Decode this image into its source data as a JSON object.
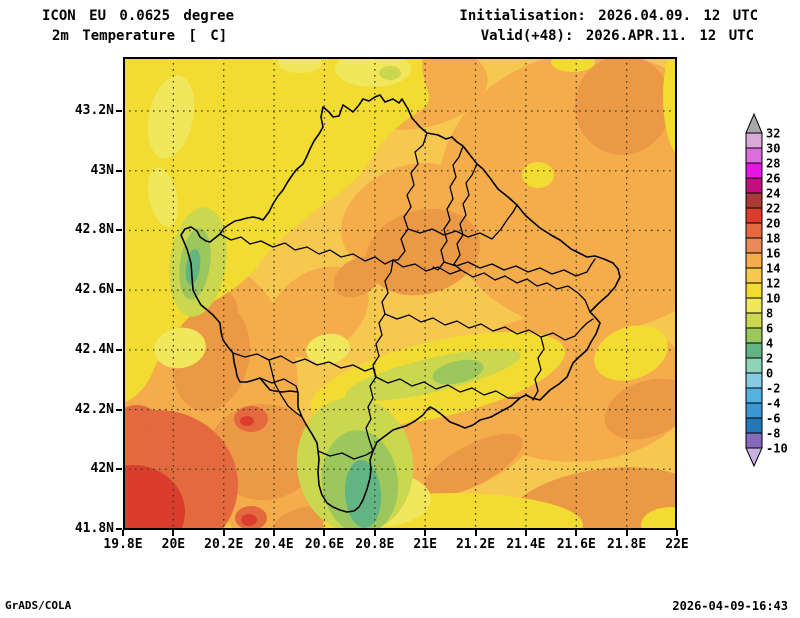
{
  "header": {
    "model_line": "ICON EU 0.0625 degree",
    "variable_line": "2m Temperature [ C]",
    "init_line": "Initialisation: 2026.04.09. 12 UTC",
    "valid_line": "Valid(+48): 2026.APR.11. 12 UTC"
  },
  "footer": {
    "credit": "GrADS/COLA",
    "timestamp": "2026-04-09-16:43"
  },
  "chart_data": {
    "type": "heatmap",
    "title": "2m Temperature [ C]",
    "model": "ICON EU 0.0625 degree",
    "initialisation": "2026.04.09. 12 UTC",
    "valid": "2026.APR.11. 12 UTC",
    "lead_hours": 48,
    "region": "Kosovo and surrounding area with municipality boundaries",
    "grid": "dotted lat/lon graticule every 0.2 degrees",
    "lon_range": [
      19.8,
      22.0
    ],
    "lat_range": [
      41.8,
      43.38
    ],
    "x_axis": {
      "label": "longitude",
      "ticks": [
        {
          "value": 19.8,
          "label": "19.8E"
        },
        {
          "value": 20.0,
          "label": "20E"
        },
        {
          "value": 20.2,
          "label": "20.2E"
        },
        {
          "value": 20.4,
          "label": "20.4E"
        },
        {
          "value": 20.6,
          "label": "20.6E"
        },
        {
          "value": 20.8,
          "label": "20.8E"
        },
        {
          "value": 21.0,
          "label": "21E"
        },
        {
          "value": 21.2,
          "label": "21.2E"
        },
        {
          "value": 21.4,
          "label": "21.4E"
        },
        {
          "value": 21.6,
          "label": "21.6E"
        },
        {
          "value": 21.8,
          "label": "21.8E"
        },
        {
          "value": 22.0,
          "label": "22E"
        }
      ]
    },
    "y_axis": {
      "label": "latitude",
      "ticks": [
        {
          "value": 43.2,
          "label": "43.2N"
        },
        {
          "value": 43.0,
          "label": "43N"
        },
        {
          "value": 42.8,
          "label": "42.8N"
        },
        {
          "value": 42.6,
          "label": "42.6N"
        },
        {
          "value": 42.4,
          "label": "42.4N"
        },
        {
          "value": 42.2,
          "label": "42.2N"
        },
        {
          "value": 42.0,
          "label": "42N"
        },
        {
          "value": 41.8,
          "label": "41.8N"
        }
      ]
    },
    "colorbar": {
      "unit": "C",
      "over_color": "#a8a8a8",
      "under_color": "#c9b2e2",
      "segments": [
        {
          "from": 30,
          "to": 32,
          "color": "#d9a9da"
        },
        {
          "from": 28,
          "to": 30,
          "color": "#dc6edc"
        },
        {
          "from": 26,
          "to": 28,
          "color": "#e316e3"
        },
        {
          "from": 24,
          "to": 26,
          "color": "#c20f80"
        },
        {
          "from": 22,
          "to": 24,
          "color": "#a93a34"
        },
        {
          "from": 20,
          "to": 22,
          "color": "#da3d2c"
        },
        {
          "from": 18,
          "to": 20,
          "color": "#e4693f"
        },
        {
          "from": 16,
          "to": 18,
          "color": "#ea8a58"
        },
        {
          "from": 14,
          "to": 16,
          "color": "#f5ad4b"
        },
        {
          "from": 12,
          "to": 14,
          "color": "#f6c84f"
        },
        {
          "from": 10,
          "to": 12,
          "color": "#f2dc31"
        },
        {
          "from": 8,
          "to": 10,
          "color": "#f1e75c"
        },
        {
          "from": 6,
          "to": 8,
          "color": "#cbd74e"
        },
        {
          "from": 4,
          "to": 6,
          "color": "#9cc75d"
        },
        {
          "from": 2,
          "to": 4,
          "color": "#62b583"
        },
        {
          "from": 0,
          "to": 2,
          "color": "#8ed4b9"
        },
        {
          "from": -2,
          "to": 0,
          "color": "#85cbe4"
        },
        {
          "from": -4,
          "to": -2,
          "color": "#55b1e0"
        },
        {
          "from": -6,
          "to": -4,
          "color": "#3b96d2"
        },
        {
          "from": -8,
          "to": -6,
          "color": "#2478b6"
        },
        {
          "from": -10,
          "to": -8,
          "color": "#8569bb"
        }
      ]
    },
    "temperature_features": [
      {
        "area": "northwest quadrant (outside Kosovo, high plateau)",
        "temp_c": "10-12"
      },
      {
        "area": "pale patches far NW and along top edge",
        "temp_c": "8-10"
      },
      {
        "area": "western border mountains (~20.15E, 42.5-42.7N)",
        "temp_c": "2-8 (green patch)"
      },
      {
        "area": "Sharr mountains south-center (~20.7E, 41.9-42.2N)",
        "temp_c": "2-8 (green patch)"
      },
      {
        "area": "diagonal valley band SW-NE through center",
        "temp_c": "8-12"
      },
      {
        "area": "central and eastern Kosovo lowlands",
        "temp_c": "12-16"
      },
      {
        "area": "dark orange patches NE corner, center and SE",
        "temp_c": "16-18"
      },
      {
        "area": "southwest corner lowlands (Albania)",
        "temp_c": "18-22 (red core 20-22)"
      },
      {
        "area": "small hot spots near 20.3E/42.2N and 20.3E/41.9N",
        "temp_c": "18-22"
      }
    ]
  }
}
